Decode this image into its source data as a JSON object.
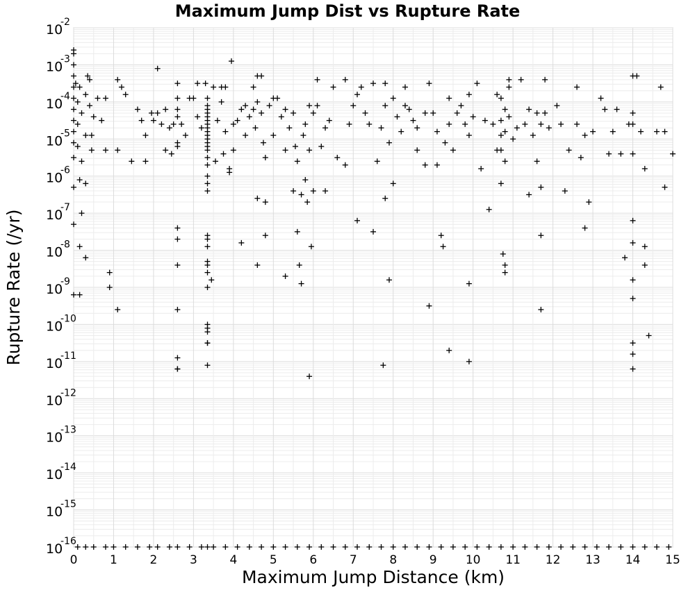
{
  "chart_data": {
    "type": "scatter",
    "title": "Maximum Jump Dist vs Rupture Rate",
    "xlabel": "Maximum Jump Distance (km)",
    "ylabel": "Rupture Rate (/yr)",
    "xlim": [
      0,
      15
    ],
    "ylim_log10": [
      -16,
      -2
    ],
    "yscale": "log",
    "grid": true,
    "marker": "plus",
    "x_ticks": [
      "0",
      "1",
      "2",
      "3",
      "4",
      "5",
      "6",
      "7",
      "8",
      "9",
      "10",
      "11",
      "12",
      "13",
      "14",
      "15"
    ],
    "y_ticks": [
      {
        "base": "10",
        "exp": "-16"
      },
      {
        "base": "10",
        "exp": "-15"
      },
      {
        "base": "10",
        "exp": "-14"
      },
      {
        "base": "10",
        "exp": "-13"
      },
      {
        "base": "10",
        "exp": "-12"
      },
      {
        "base": "10",
        "exp": "-11"
      },
      {
        "base": "10",
        "exp": "-10"
      },
      {
        "base": "10",
        "exp": "-9"
      },
      {
        "base": "10",
        "exp": "-8"
      },
      {
        "base": "10",
        "exp": "-7"
      },
      {
        "base": "10",
        "exp": "-6"
      },
      {
        "base": "10",
        "exp": "-5"
      },
      {
        "base": "10",
        "exp": "-4"
      },
      {
        "base": "10",
        "exp": "-3"
      },
      {
        "base": "10",
        "exp": "-2"
      }
    ],
    "points": [
      [
        0,
        -2.6
      ],
      [
        0,
        -2.7
      ],
      [
        0,
        -3.0
      ],
      [
        0,
        -3.3
      ],
      [
        0,
        -3.6
      ],
      [
        0,
        -3.9
      ],
      [
        0,
        -4.2
      ],
      [
        0,
        -4.5
      ],
      [
        0,
        -4.8
      ],
      [
        0,
        -5.1
      ],
      [
        0,
        -5.5
      ],
      [
        0,
        -6.3
      ],
      [
        0,
        -7.3
      ],
      [
        0,
        -9.2
      ],
      [
        0.05,
        -3.5
      ],
      [
        0.1,
        -4.0
      ],
      [
        0.1,
        -4.6
      ],
      [
        0.1,
        -5.2
      ],
      [
        0.15,
        -3.6
      ],
      [
        0.15,
        -6.1
      ],
      [
        0.15,
        -9.2
      ],
      [
        0.15,
        -7.9
      ],
      [
        0.2,
        -4.3
      ],
      [
        0.2,
        -5.6
      ],
      [
        0.2,
        -7.0
      ],
      [
        0.3,
        -3.8
      ],
      [
        0.3,
        -4.9
      ],
      [
        0.3,
        -6.2
      ],
      [
        0.3,
        -8.2
      ],
      [
        0.35,
        -3.3
      ],
      [
        0.4,
        -3.4
      ],
      [
        0.4,
        -4.1
      ],
      [
        0.45,
        -4.9
      ],
      [
        0.45,
        -5.3
      ],
      [
        0.5,
        -4.4
      ],
      [
        0.6,
        -3.9
      ],
      [
        0.7,
        -4.5
      ],
      [
        0.8,
        -3.9
      ],
      [
        0.8,
        -5.3
      ],
      [
        0.9,
        -8.6
      ],
      [
        0.9,
        -9.0
      ],
      [
        1.1,
        -3.4
      ],
      [
        1.1,
        -5.3
      ],
      [
        1.1,
        -9.6
      ],
      [
        1.2,
        -3.6
      ],
      [
        1.3,
        -3.8
      ],
      [
        1.45,
        -5.6
      ],
      [
        1.6,
        -4.2
      ],
      [
        1.7,
        -4.5
      ],
      [
        1.8,
        -4.9
      ],
      [
        1.8,
        -5.6
      ],
      [
        1.95,
        -4.3
      ],
      [
        2.0,
        -4.5
      ],
      [
        2.1,
        -3.1
      ],
      [
        2.1,
        -4.3
      ],
      [
        2.2,
        -4.6
      ],
      [
        2.3,
        -4.2
      ],
      [
        2.3,
        -5.3
      ],
      [
        2.4,
        -4.7
      ],
      [
        2.45,
        -5.4
      ],
      [
        2.5,
        -4.6
      ],
      [
        2.6,
        -3.5
      ],
      [
        2.6,
        -3.9
      ],
      [
        2.6,
        -4.2
      ],
      [
        2.6,
        -4.4
      ],
      [
        2.6,
        -5.1
      ],
      [
        2.6,
        -5.2
      ],
      [
        2.6,
        -7.4
      ],
      [
        2.6,
        -7.7
      ],
      [
        2.6,
        -8.4
      ],
      [
        2.6,
        -9.6
      ],
      [
        2.6,
        -10.9
      ],
      [
        2.6,
        -11.2
      ],
      [
        2.6,
        -11.2
      ],
      [
        2.7,
        -4.6
      ],
      [
        2.8,
        -4.9
      ],
      [
        2.9,
        -3.9
      ],
      [
        3.0,
        -3.9
      ],
      [
        3.1,
        -3.5
      ],
      [
        3.1,
        -4.4
      ],
      [
        3.2,
        -4.7
      ],
      [
        3.3,
        -3.5
      ],
      [
        3.35,
        -3.9
      ],
      [
        3.35,
        -4.1
      ],
      [
        3.35,
        -4.2
      ],
      [
        3.35,
        -4.3
      ],
      [
        3.35,
        -4.4
      ],
      [
        3.35,
        -4.5
      ],
      [
        3.35,
        -4.6
      ],
      [
        3.35,
        -4.7
      ],
      [
        3.35,
        -4.8
      ],
      [
        3.35,
        -4.9
      ],
      [
        3.35,
        -5.0
      ],
      [
        3.35,
        -5.1
      ],
      [
        3.35,
        -5.2
      ],
      [
        3.35,
        -5.3
      ],
      [
        3.35,
        -5.5
      ],
      [
        3.35,
        -5.7
      ],
      [
        3.35,
        -6.0
      ],
      [
        3.35,
        -6.2
      ],
      [
        3.35,
        -6.4
      ],
      [
        3.35,
        -7.6
      ],
      [
        3.35,
        -7.7
      ],
      [
        3.35,
        -7.9
      ],
      [
        3.35,
        -8.3
      ],
      [
        3.35,
        -8.4
      ],
      [
        3.35,
        -8.6
      ],
      [
        3.35,
        -9.0
      ],
      [
        3.35,
        -10.0
      ],
      [
        3.35,
        -10.1
      ],
      [
        3.35,
        -10.2
      ],
      [
        3.35,
        -10.5
      ],
      [
        3.35,
        -10.5
      ],
      [
        3.35,
        -11.1
      ],
      [
        3.45,
        -8.8
      ],
      [
        3.5,
        -3.6
      ],
      [
        3.55,
        -5.6
      ],
      [
        3.6,
        -4.5
      ],
      [
        3.7,
        -3.6
      ],
      [
        3.7,
        -4.0
      ],
      [
        3.75,
        -5.4
      ],
      [
        3.8,
        -3.6
      ],
      [
        3.8,
        -4.8
      ],
      [
        3.9,
        -5.8
      ],
      [
        3.9,
        -5.9
      ],
      [
        3.95,
        -2.9
      ],
      [
        4.0,
        -4.6
      ],
      [
        4.0,
        -5.3
      ],
      [
        4.1,
        -4.5
      ],
      [
        4.2,
        -4.2
      ],
      [
        4.2,
        -7.8
      ],
      [
        4.3,
        -4.1
      ],
      [
        4.3,
        -4.9
      ],
      [
        4.4,
        -4.4
      ],
      [
        4.5,
        -3.6
      ],
      [
        4.5,
        -4.2
      ],
      [
        4.55,
        -4.7
      ],
      [
        4.6,
        -3.3
      ],
      [
        4.6,
        -4.0
      ],
      [
        4.6,
        -6.6
      ],
      [
        4.6,
        -8.4
      ],
      [
        4.7,
        -3.3
      ],
      [
        4.7,
        -4.3
      ],
      [
        4.75,
        -5.1
      ],
      [
        4.8,
        -6.7
      ],
      [
        4.8,
        -7.6
      ],
      [
        4.8,
        -5.5
      ],
      [
        4.9,
        -4.1
      ],
      [
        5.0,
        -3.9
      ],
      [
        5.0,
        -4.9
      ],
      [
        5.1,
        -3.9
      ],
      [
        5.2,
        -4.4
      ],
      [
        5.3,
        -4.2
      ],
      [
        5.3,
        -5.3
      ],
      [
        5.3,
        -8.7
      ],
      [
        5.4,
        -4.7
      ],
      [
        5.5,
        -4.3
      ],
      [
        5.5,
        -6.4
      ],
      [
        5.55,
        -5.2
      ],
      [
        5.6,
        -5.6
      ],
      [
        5.6,
        -7.5
      ],
      [
        5.65,
        -8.4
      ],
      [
        5.7,
        -6.5
      ],
      [
        5.7,
        -8.9
      ],
      [
        5.75,
        -4.9
      ],
      [
        5.8,
        -4.6
      ],
      [
        5.8,
        -6.1
      ],
      [
        5.85,
        -6.7
      ],
      [
        5.9,
        -4.1
      ],
      [
        5.9,
        -5.3
      ],
      [
        5.9,
        -11.4
      ],
      [
        5.95,
        -7.9
      ],
      [
        6.0,
        -6.4
      ],
      [
        6.0,
        -4.3
      ],
      [
        6.1,
        -3.4
      ],
      [
        6.1,
        -4.1
      ],
      [
        6.2,
        -5.2
      ],
      [
        6.3,
        -4.7
      ],
      [
        6.3,
        -6.4
      ],
      [
        6.4,
        -4.5
      ],
      [
        6.5,
        -3.6
      ],
      [
        6.6,
        -5.5
      ],
      [
        6.8,
        -3.4
      ],
      [
        6.8,
        -5.7
      ],
      [
        6.9,
        -4.6
      ],
      [
        7.0,
        -4.1
      ],
      [
        7.1,
        -3.8
      ],
      [
        7.1,
        -7.2
      ],
      [
        7.2,
        -3.6
      ],
      [
        7.3,
        -4.3
      ],
      [
        7.4,
        -4.6
      ],
      [
        7.5,
        -3.5
      ],
      [
        7.5,
        -7.5
      ],
      [
        7.6,
        -5.6
      ],
      [
        7.7,
        -4.7
      ],
      [
        7.75,
        -11.1
      ],
      [
        7.8,
        -3.5
      ],
      [
        7.8,
        -4.1
      ],
      [
        7.8,
        -6.6
      ],
      [
        7.9,
        -8.8
      ],
      [
        7.9,
        -5.1
      ],
      [
        8.0,
        -3.9
      ],
      [
        8.0,
        -6.2
      ],
      [
        8.1,
        -4.4
      ],
      [
        8.2,
        -4.8
      ],
      [
        8.3,
        -3.6
      ],
      [
        8.3,
        -4.1
      ],
      [
        8.4,
        -4.2
      ],
      [
        8.5,
        -4.5
      ],
      [
        8.6,
        -4.7
      ],
      [
        8.6,
        -5.3
      ],
      [
        8.8,
        -4.3
      ],
      [
        8.8,
        -5.7
      ],
      [
        8.9,
        -3.5
      ],
      [
        8.9,
        -9.5
      ],
      [
        9.0,
        -4.3
      ],
      [
        9.1,
        -4.8
      ],
      [
        9.1,
        -5.7
      ],
      [
        9.2,
        -7.6
      ],
      [
        9.25,
        -7.9
      ],
      [
        9.3,
        -5.1
      ],
      [
        9.4,
        -3.9
      ],
      [
        9.4,
        -4.6
      ],
      [
        9.4,
        -10.7
      ],
      [
        9.5,
        -5.3
      ],
      [
        9.6,
        -4.3
      ],
      [
        9.7,
        -4.1
      ],
      [
        9.8,
        -4.6
      ],
      [
        9.9,
        -3.8
      ],
      [
        9.9,
        -4.9
      ],
      [
        9.9,
        -8.9
      ],
      [
        9.9,
        -11.0
      ],
      [
        10.0,
        -4.4
      ],
      [
        10.1,
        -3.5
      ],
      [
        10.2,
        -5.8
      ],
      [
        10.3,
        -4.5
      ],
      [
        10.4,
        -6.9
      ],
      [
        10.5,
        -4.6
      ],
      [
        10.6,
        -3.8
      ],
      [
        10.6,
        -5.3
      ],
      [
        10.7,
        -3.9
      ],
      [
        10.7,
        -4.5
      ],
      [
        10.7,
        -4.9
      ],
      [
        10.7,
        -5.3
      ],
      [
        10.7,
        -6.2
      ],
      [
        10.75,
        -8.1
      ],
      [
        10.8,
        -4.2
      ],
      [
        10.8,
        -4.8
      ],
      [
        10.8,
        -5.6
      ],
      [
        10.8,
        -8.4
      ],
      [
        10.8,
        -8.6
      ],
      [
        10.9,
        -3.4
      ],
      [
        10.9,
        -3.6
      ],
      [
        10.9,
        -4.4
      ],
      [
        11.0,
        -5.0
      ],
      [
        11.1,
        -4.7
      ],
      [
        11.2,
        -3.4
      ],
      [
        11.3,
        -4.6
      ],
      [
        11.4,
        -4.2
      ],
      [
        11.4,
        -6.5
      ],
      [
        11.5,
        -4.9
      ],
      [
        11.6,
        -4.3
      ],
      [
        11.6,
        -5.6
      ],
      [
        11.7,
        -4.6
      ],
      [
        11.7,
        -7.6
      ],
      [
        11.7,
        -9.6
      ],
      [
        11.7,
        -6.3
      ],
      [
        11.8,
        -3.4
      ],
      [
        11.8,
        -4.3
      ],
      [
        11.9,
        -4.7
      ],
      [
        12.1,
        -4.1
      ],
      [
        12.2,
        -4.6
      ],
      [
        12.3,
        -6.4
      ],
      [
        12.4,
        -5.3
      ],
      [
        12.6,
        -3.6
      ],
      [
        12.6,
        -4.6
      ],
      [
        12.7,
        -5.5
      ],
      [
        12.8,
        -4.9
      ],
      [
        12.8,
        -7.4
      ],
      [
        12.9,
        -6.7
      ],
      [
        13.0,
        -4.8
      ],
      [
        13.2,
        -3.9
      ],
      [
        13.3,
        -4.2
      ],
      [
        13.4,
        -5.4
      ],
      [
        13.5,
        -4.8
      ],
      [
        13.6,
        -4.2
      ],
      [
        13.7,
        -5.4
      ],
      [
        13.8,
        -8.2
      ],
      [
        13.9,
        -4.6
      ],
      [
        14.0,
        -3.3
      ],
      [
        14.0,
        -4.3
      ],
      [
        14.0,
        -4.6
      ],
      [
        14.0,
        -5.4
      ],
      [
        14.0,
        -7.2
      ],
      [
        14.0,
        -7.8
      ],
      [
        14.0,
        -8.8
      ],
      [
        14.0,
        -9.3
      ],
      [
        14.0,
        -10.5
      ],
      [
        14.0,
        -10.8
      ],
      [
        14.0,
        -11.2
      ],
      [
        14.1,
        -3.3
      ],
      [
        14.2,
        -4.8
      ],
      [
        14.3,
        -5.8
      ],
      [
        14.3,
        -7.9
      ],
      [
        14.3,
        -8.4
      ],
      [
        14.4,
        -10.3
      ],
      [
        14.6,
        -4.8
      ],
      [
        14.7,
        -3.6
      ],
      [
        14.8,
        -4.8
      ],
      [
        14.8,
        -6.3
      ],
      [
        15.0,
        -5.4
      ]
    ],
    "floor_points_x": [
      0.1,
      0.3,
      0.5,
      0.8,
      1.0,
      1.3,
      1.6,
      1.9,
      2.1,
      2.4,
      2.6,
      2.9,
      3.2,
      3.35,
      3.5,
      3.8,
      4.1,
      4.4,
      4.7,
      5.0,
      5.3,
      5.6,
      5.9,
      6.2,
      6.5,
      6.8,
      7.1,
      7.4,
      7.7,
      8.0,
      8.3,
      8.6,
      8.9,
      9.2,
      9.5,
      9.8,
      10.1,
      10.4,
      10.7,
      11.0,
      11.3,
      11.6,
      11.9,
      12.2,
      12.5,
      12.8,
      13.1,
      13.4,
      13.7,
      14.0,
      14.3,
      14.6,
      14.9
    ]
  }
}
